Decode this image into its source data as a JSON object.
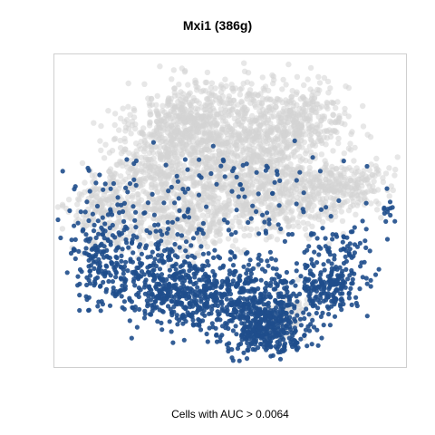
{
  "chart_data": {
    "type": "scatter",
    "title": "Mxi1 (386g)",
    "xlabel": "Cells with AUC > 0.0064",
    "ylabel": "",
    "axes_visible": false,
    "grid": false,
    "legend": "none",
    "xlim": [
      0,
      390
    ],
    "ylim": [
      0,
      347
    ],
    "colors": {
      "background_cells": "#d3d3d3",
      "auc_cells": "#1f4e8c",
      "frame": "#cfcfcf"
    },
    "series": [
      {
        "name": "",
        "color": "#d3d3d3",
        "clusters": [
          {
            "cx": 145,
            "cy": 272,
            "sx": 26,
            "sy": 22,
            "n": 380
          },
          {
            "cx": 215,
            "cy": 265,
            "sx": 32,
            "sy": 28,
            "n": 440
          },
          {
            "cx": 275,
            "cy": 270,
            "sx": 26,
            "sy": 22,
            "n": 320
          },
          {
            "cx": 110,
            "cy": 220,
            "sx": 30,
            "sy": 30,
            "n": 330
          },
          {
            "cx": 175,
            "cy": 205,
            "sx": 40,
            "sy": 30,
            "n": 420
          },
          {
            "cx": 240,
            "cy": 190,
            "sx": 30,
            "sy": 24,
            "n": 340
          },
          {
            "cx": 60,
            "cy": 175,
            "sx": 22,
            "sy": 20,
            "n": 200
          },
          {
            "cx": 140,
            "cy": 160,
            "sx": 30,
            "sy": 20,
            "n": 240
          },
          {
            "cx": 330,
            "cy": 205,
            "sx": 22,
            "sy": 14,
            "n": 170
          },
          {
            "cx": 295,
            "cy": 190,
            "sx": 18,
            "sy": 18,
            "n": 120
          },
          {
            "cx": 255,
            "cy": 55,
            "sx": 12,
            "sy": 14,
            "n": 80
          }
        ]
      },
      {
        "name": "",
        "color": "#1f4e8c",
        "clusters": [
          {
            "cx": 185,
            "cy": 80,
            "sx": 50,
            "sy": 18,
            "n": 540
          },
          {
            "cx": 235,
            "cy": 45,
            "sx": 24,
            "sy": 14,
            "n": 380
          },
          {
            "cx": 305,
            "cy": 90,
            "sx": 18,
            "sy": 16,
            "n": 180
          },
          {
            "cx": 120,
            "cy": 95,
            "sx": 30,
            "sy": 20,
            "n": 200
          },
          {
            "cx": 50,
            "cy": 120,
            "sx": 16,
            "sy": 24,
            "n": 130
          },
          {
            "cx": 90,
            "cy": 150,
            "sx": 45,
            "sy": 40,
            "n": 130
          },
          {
            "cx": 200,
            "cy": 170,
            "sx": 60,
            "sy": 40,
            "n": 120
          },
          {
            "cx": 370,
            "cy": 175,
            "sx": 8,
            "sy": 8,
            "n": 12
          },
          {
            "cx": 325,
            "cy": 130,
            "sx": 22,
            "sy": 18,
            "n": 60
          }
        ]
      }
    ]
  }
}
